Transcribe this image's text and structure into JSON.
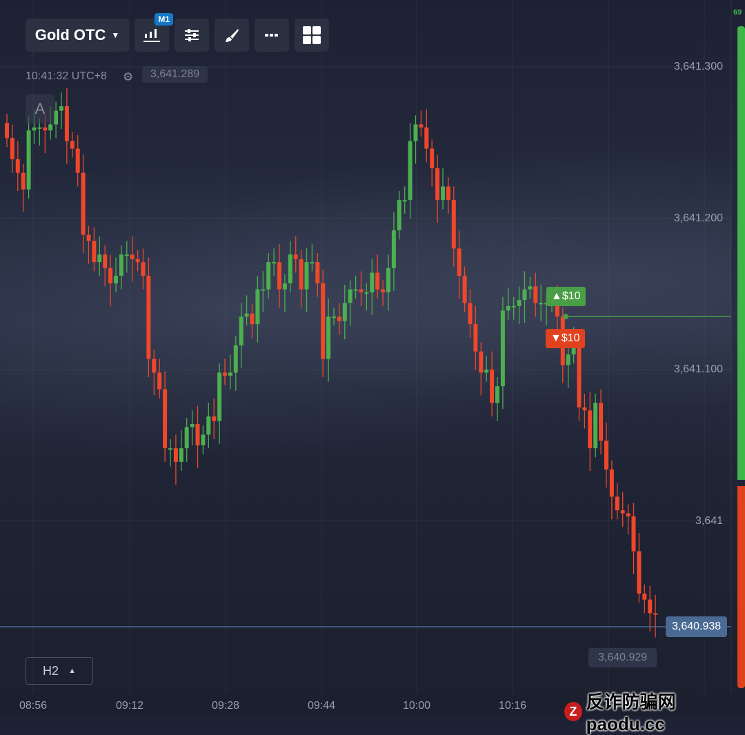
{
  "toolbar": {
    "asset": "Gold OTC",
    "timeframe_badge": "M1",
    "icons": [
      "candlestick-chart-icon",
      "sliders-icon",
      "brush-icon",
      "more-icon",
      "grid-layout-icon"
    ]
  },
  "header": {
    "time": "10:41:32 UTC+8",
    "ghost_price": "3,641.289",
    "auto_label": "A"
  },
  "y_axis": {
    "labels": [
      {
        "text": "3,641.300",
        "value": 3641.3
      },
      {
        "text": "3,641.200",
        "value": 3641.2
      },
      {
        "text": "3,641.100",
        "value": 3641.1
      },
      {
        "text": "3,641",
        "value": 3641.0
      }
    ]
  },
  "x_axis": {
    "labels": [
      "08:56",
      "09:12",
      "09:28",
      "09:44",
      "10:00",
      "10:16"
    ]
  },
  "current_price": "3,640.938",
  "previous_price": "3,640.929",
  "trades": {
    "up": "$10",
    "down": "$10",
    "entry_price": 3641.135
  },
  "timeframe_selector": "H2",
  "sentiment": {
    "buy_percent": 69,
    "label": "69"
  },
  "colors": {
    "up": "#4caf50",
    "down": "#f0472a",
    "bg": "#1e2233",
    "current_line": "#5a7aa5"
  },
  "watermark": {
    "text": "反诈防骗网 paodu.cc"
  },
  "chart_data": {
    "type": "candlestick",
    "interval": "1 minute",
    "closes": [
      3641.253,
      3641.239,
      3641.23,
      3641.219,
      3641.258,
      3641.26,
      3641.26,
      3641.258,
      3641.262,
      3641.271,
      3641.274,
      3641.251,
      3641.246,
      3641.23,
      3641.189,
      3641.185,
      3641.171,
      3641.176,
      3641.167,
      3641.157,
      3641.162,
      3641.176,
      3641.176,
      3641.173,
      3641.171,
      3641.162,
      3641.107,
      3641.098,
      3641.087,
      3641.048,
      3641.048,
      3641.039,
      3641.048,
      3641.062,
      3641.064,
      3641.05,
      3641.057,
      3641.069,
      3641.066,
      3641.098,
      3641.096,
      3641.098,
      3641.116,
      3641.135,
      3641.137,
      3641.13,
      3641.153,
      3641.153,
      3641.171,
      3641.171,
      3641.153,
      3641.157,
      3641.176,
      3641.173,
      3641.153,
      3641.171,
      3641.171,
      3641.157,
      3641.107,
      3641.135,
      3641.135,
      3641.132,
      3641.144,
      3641.153,
      3641.153,
      3641.151,
      3641.151,
      3641.164,
      3641.153,
      3641.151,
      3641.167,
      3641.192,
      3641.212,
      3641.212,
      3641.251,
      3641.262,
      3641.26,
      3641.246,
      3641.233,
      3641.212,
      3641.221,
      3641.212,
      3641.18,
      3641.162,
      3641.144,
      3641.13,
      3641.112,
      3641.098,
      3641.1,
      3641.078,
      3641.089,
      3641.139,
      3641.142,
      3641.142,
      3641.146,
      3641.153,
      3641.155,
      3641.144,
      3641.144,
      3641.144,
      3641.144,
      3641.135,
      3641.103,
      3641.11,
      3641.116,
      3641.075,
      3641.073,
      3641.048,
      3641.078,
      3641.053,
      3641.034,
      3641.016,
      3641.007,
      3641.005,
      3641.003,
      3640.98,
      3640.952,
      3640.948,
      3640.939,
      3640.938
    ]
  }
}
